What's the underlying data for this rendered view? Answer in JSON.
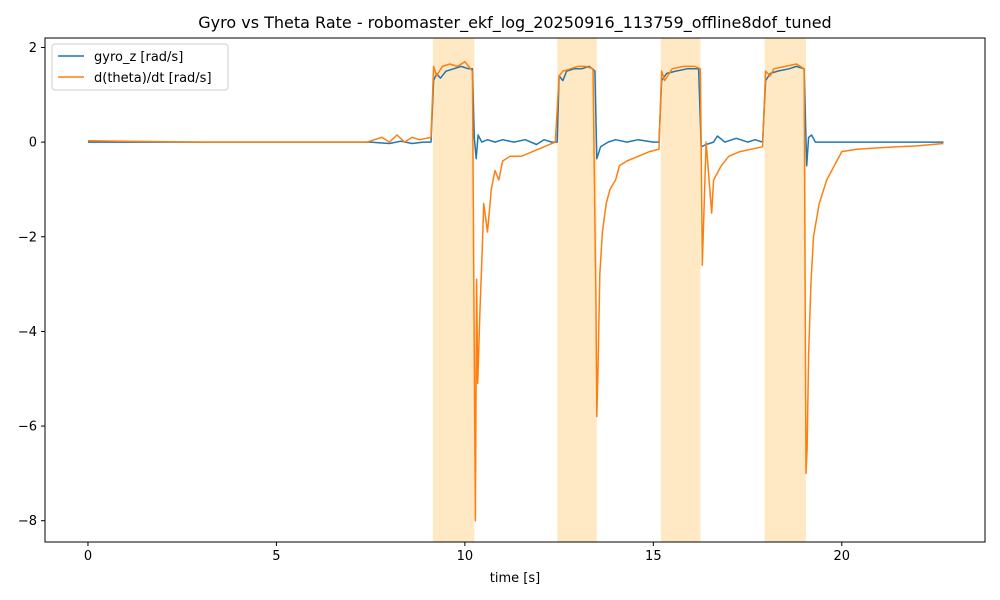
{
  "chart_data": {
    "type": "line",
    "title": "Gyro vs Theta Rate - robomaster_ekf_log_20250916_113759_offline8dof_tuned",
    "xlabel": "time [s]",
    "ylabel": "",
    "xlim": [
      -1.14,
      23.8
    ],
    "ylim": [
      -8.45,
      2.2
    ],
    "xticks": [
      0,
      5,
      10,
      15,
      20
    ],
    "yticks": [
      2,
      0,
      -2,
      -4,
      -6,
      -8
    ],
    "grid": false,
    "legend_position": "upper-left",
    "shaded_regions": {
      "color": "#ffe9c4",
      "spans": [
        [
          9.15,
          10.25
        ],
        [
          12.45,
          13.5
        ],
        [
          15.2,
          16.25
        ],
        [
          17.95,
          19.05
        ]
      ]
    },
    "series": [
      {
        "name": "gyro_z [rad/s]",
        "color": "#1f77b4",
        "points": [
          [
            0,
            0.0
          ],
          [
            3,
            0.0
          ],
          [
            6,
            0.0
          ],
          [
            7.5,
            0.0
          ],
          [
            8.0,
            -0.03
          ],
          [
            8.3,
            0.02
          ],
          [
            8.6,
            -0.03
          ],
          [
            8.9,
            0.0
          ],
          [
            9.1,
            0.0
          ],
          [
            9.17,
            1.3
          ],
          [
            9.25,
            1.45
          ],
          [
            9.35,
            1.35
          ],
          [
            9.5,
            1.5
          ],
          [
            9.7,
            1.55
          ],
          [
            9.9,
            1.6
          ],
          [
            10.1,
            1.55
          ],
          [
            10.2,
            1.55
          ],
          [
            10.25,
            0.1
          ],
          [
            10.3,
            -0.35
          ],
          [
            10.35,
            0.15
          ],
          [
            10.45,
            0.0
          ],
          [
            10.6,
            0.05
          ],
          [
            10.8,
            0.0
          ],
          [
            11.0,
            0.05
          ],
          [
            11.3,
            0.0
          ],
          [
            11.6,
            0.05
          ],
          [
            11.9,
            -0.05
          ],
          [
            12.1,
            0.05
          ],
          [
            12.3,
            0.0
          ],
          [
            12.45,
            0.0
          ],
          [
            12.5,
            1.4
          ],
          [
            12.6,
            1.3
          ],
          [
            12.7,
            1.5
          ],
          [
            12.9,
            1.55
          ],
          [
            13.1,
            1.55
          ],
          [
            13.3,
            1.6
          ],
          [
            13.45,
            1.5
          ],
          [
            13.5,
            -0.35
          ],
          [
            13.6,
            -0.1
          ],
          [
            13.8,
            0.0
          ],
          [
            14.0,
            0.05
          ],
          [
            14.3,
            0.0
          ],
          [
            14.6,
            0.05
          ],
          [
            15.0,
            0.0
          ],
          [
            15.15,
            0.0
          ],
          [
            15.22,
            1.3
          ],
          [
            15.35,
            1.45
          ],
          [
            15.6,
            1.5
          ],
          [
            15.9,
            1.55
          ],
          [
            16.2,
            1.55
          ],
          [
            16.27,
            -0.1
          ],
          [
            16.4,
            -0.05
          ],
          [
            16.6,
            0.0
          ],
          [
            16.7,
            0.13
          ],
          [
            16.9,
            0.0
          ],
          [
            17.2,
            0.08
          ],
          [
            17.5,
            0.0
          ],
          [
            17.7,
            0.05
          ],
          [
            17.9,
            0.0
          ],
          [
            17.98,
            1.3
          ],
          [
            18.1,
            1.45
          ],
          [
            18.3,
            1.5
          ],
          [
            18.6,
            1.55
          ],
          [
            18.8,
            1.6
          ],
          [
            19.0,
            1.55
          ],
          [
            19.07,
            -0.5
          ],
          [
            19.12,
            0.1
          ],
          [
            19.2,
            0.15
          ],
          [
            19.3,
            0.0
          ],
          [
            19.6,
            0.0
          ],
          [
            20.5,
            0.0
          ],
          [
            21.5,
            0.0
          ],
          [
            22.7,
            0.0
          ]
        ]
      },
      {
        "name": "d(theta)/dt [rad/s]",
        "color": "#ff7f0e",
        "points": [
          [
            0,
            0.03
          ],
          [
            1,
            0.02
          ],
          [
            3,
            0.0
          ],
          [
            6,
            0.0
          ],
          [
            7.4,
            0.0
          ],
          [
            7.6,
            0.05
          ],
          [
            7.8,
            0.1
          ],
          [
            8.0,
            0.0
          ],
          [
            8.2,
            0.15
          ],
          [
            8.4,
            0.0
          ],
          [
            8.6,
            0.1
          ],
          [
            8.8,
            0.05
          ],
          [
            9.1,
            0.1
          ],
          [
            9.17,
            1.6
          ],
          [
            9.25,
            1.4
          ],
          [
            9.4,
            1.6
          ],
          [
            9.6,
            1.65
          ],
          [
            9.8,
            1.6
          ],
          [
            10.0,
            1.7
          ],
          [
            10.2,
            1.5
          ],
          [
            10.28,
            -8.0
          ],
          [
            10.31,
            -2.9
          ],
          [
            10.34,
            -5.1
          ],
          [
            10.4,
            -3.6
          ],
          [
            10.46,
            -2.3
          ],
          [
            10.5,
            -1.3
          ],
          [
            10.6,
            -1.9
          ],
          [
            10.7,
            -1.0
          ],
          [
            10.8,
            -0.6
          ],
          [
            10.9,
            -0.8
          ],
          [
            11.0,
            -0.4
          ],
          [
            11.2,
            -0.3
          ],
          [
            11.5,
            -0.3
          ],
          [
            11.8,
            -0.2
          ],
          [
            12.1,
            -0.1
          ],
          [
            12.4,
            0.0
          ],
          [
            12.5,
            1.4
          ],
          [
            12.6,
            1.5
          ],
          [
            12.8,
            1.55
          ],
          [
            13.0,
            1.6
          ],
          [
            13.2,
            1.6
          ],
          [
            13.4,
            1.55
          ],
          [
            13.48,
            -3.5
          ],
          [
            13.5,
            -5.8
          ],
          [
            13.53,
            -4.9
          ],
          [
            13.58,
            -2.8
          ],
          [
            13.65,
            -1.9
          ],
          [
            13.75,
            -1.3
          ],
          [
            13.85,
            -1.0
          ],
          [
            14.0,
            -0.8
          ],
          [
            14.1,
            -0.5
          ],
          [
            14.3,
            -0.4
          ],
          [
            14.6,
            -0.3
          ],
          [
            14.9,
            -0.2
          ],
          [
            15.15,
            -0.15
          ],
          [
            15.22,
            1.5
          ],
          [
            15.3,
            1.3
          ],
          [
            15.5,
            1.55
          ],
          [
            15.8,
            1.6
          ],
          [
            16.1,
            1.6
          ],
          [
            16.25,
            1.55
          ],
          [
            16.3,
            -2.6
          ],
          [
            16.4,
            0.0
          ],
          [
            16.55,
            -1.5
          ],
          [
            16.6,
            -0.8
          ],
          [
            16.8,
            -0.5
          ],
          [
            17.0,
            -0.3
          ],
          [
            17.3,
            -0.2
          ],
          [
            17.6,
            -0.15
          ],
          [
            17.9,
            -0.1
          ],
          [
            17.98,
            1.5
          ],
          [
            18.1,
            1.4
          ],
          [
            18.2,
            1.55
          ],
          [
            18.5,
            1.6
          ],
          [
            18.8,
            1.65
          ],
          [
            19.0,
            1.55
          ],
          [
            19.05,
            -7.0
          ],
          [
            19.08,
            -6.5
          ],
          [
            19.12,
            -4.5
          ],
          [
            19.18,
            -3.0
          ],
          [
            19.25,
            -2.0
          ],
          [
            19.4,
            -1.3
          ],
          [
            19.6,
            -0.8
          ],
          [
            19.8,
            -0.5
          ],
          [
            20.0,
            -0.2
          ],
          [
            20.4,
            -0.15
          ],
          [
            21.0,
            -0.12
          ],
          [
            21.5,
            -0.1
          ],
          [
            22.0,
            -0.08
          ],
          [
            22.4,
            -0.05
          ],
          [
            22.7,
            -0.03
          ]
        ]
      }
    ]
  }
}
